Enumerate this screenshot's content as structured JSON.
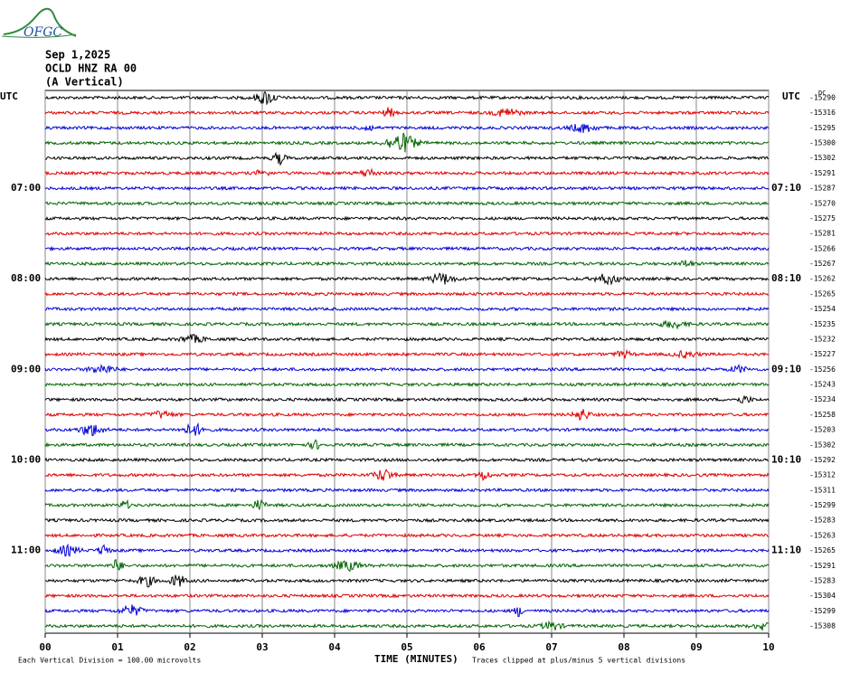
{
  "logo": "OFGC",
  "header": {
    "date": "Sep 1,2025",
    "station": "OCLD HNZ RA 00",
    "component": "(A Vertical)",
    "utc_left": "UTC",
    "utc_right": "UTC",
    "dc": "DC"
  },
  "trace_colors": [
    "#000000",
    "#e00000",
    "#0000d8",
    "#006400"
  ],
  "xlim": [
    0,
    10
  ],
  "xticks": [
    {
      "value": 0,
      "label": "00"
    },
    {
      "value": 1,
      "label": "01"
    },
    {
      "value": 2,
      "label": "02"
    },
    {
      "value": 3,
      "label": "03"
    },
    {
      "value": 4,
      "label": "04"
    },
    {
      "value": 5,
      "label": "05"
    },
    {
      "value": 6,
      "label": "06"
    },
    {
      "value": 7,
      "label": "07"
    },
    {
      "value": 8,
      "label": "08"
    },
    {
      "value": 9,
      "label": "09"
    },
    {
      "value": 10,
      "label": "10"
    }
  ],
  "xlabel": "TIME (MINUTES)",
  "footer": {
    "scale": "Each Vertical Division =  100.00 microvolts",
    "clip": "Traces clipped at plus/minus 5 vertical divisions"
  },
  "rows": [
    {
      "offset": -15290
    },
    {
      "offset": -15316
    },
    {
      "offset": -15295
    },
    {
      "offset": -15300
    },
    {
      "offset": -15302
    },
    {
      "offset": -15291
    },
    {
      "offset": -15287,
      "left": "07:00",
      "right": "07:10"
    },
    {
      "offset": -15270
    },
    {
      "offset": -15275
    },
    {
      "offset": -15281
    },
    {
      "offset": -15266
    },
    {
      "offset": -15267
    },
    {
      "offset": -15262,
      "left": "08:00",
      "right": "08:10"
    },
    {
      "offset": -15265
    },
    {
      "offset": -15254
    },
    {
      "offset": -15235
    },
    {
      "offset": -15232
    },
    {
      "offset": -15227
    },
    {
      "offset": -15256,
      "left": "09:00",
      "right": "09:10"
    },
    {
      "offset": -15243
    },
    {
      "offset": -15234
    },
    {
      "offset": -15258
    },
    {
      "offset": -15203
    },
    {
      "offset": -15302
    },
    {
      "offset": -15292,
      "left": "10:00",
      "right": "10:10"
    },
    {
      "offset": -15312
    },
    {
      "offset": -15311
    },
    {
      "offset": -15299
    },
    {
      "offset": -15283
    },
    {
      "offset": -15263
    },
    {
      "offset": -15265,
      "left": "11:00",
      "right": "11:10"
    },
    {
      "offset": -15291
    },
    {
      "offset": -15283
    },
    {
      "offset": -15304
    },
    {
      "offset": -15299
    },
    {
      "offset": -15308
    }
  ]
}
